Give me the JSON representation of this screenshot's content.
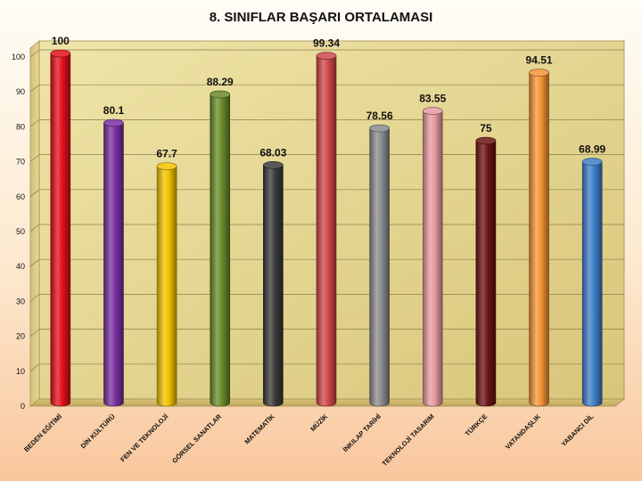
{
  "chart_data": {
    "type": "bar",
    "title": "8. SINIFLAR  BAŞARI ORTALAMASI",
    "xlabel": "",
    "ylabel": "",
    "ylim": [
      0,
      100
    ],
    "yticks": [
      0,
      10,
      20,
      30,
      40,
      50,
      60,
      70,
      80,
      90,
      100
    ],
    "grid": true,
    "legend": "none",
    "categories": [
      "BEDEN EĞİTİMİ",
      "DİN KÜLTÜRÜ",
      "FEN VE TEKNOLOJİ",
      "GÖRSEL SANATLAR",
      "MATEMATİK",
      "MÜZİK",
      "İNKILAP TARİHİ",
      "TEKNOLOJİ TASARIM",
      "TÜRKÇE",
      "VATANDAŞLIK",
      "YABANCI DİL"
    ],
    "values": [
      100,
      80.1,
      67.7,
      88.29,
      68.03,
      99.34,
      78.56,
      83.55,
      75,
      94.51,
      68.99
    ],
    "labels": [
      "100",
      "80.1",
      "67.7",
      "88.29",
      "68.03",
      "99.34",
      "78.56",
      "83.55",
      "75",
      "94.51",
      "68.99"
    ],
    "colors": [
      "#e3101a",
      "#7a2fa0",
      "#f2c200",
      "#6b8c2a",
      "#3a3a3a",
      "#d0474b",
      "#8c8c8c",
      "#e69aa0",
      "#6b1414",
      "#f39436",
      "#3f7ec9"
    ]
  }
}
